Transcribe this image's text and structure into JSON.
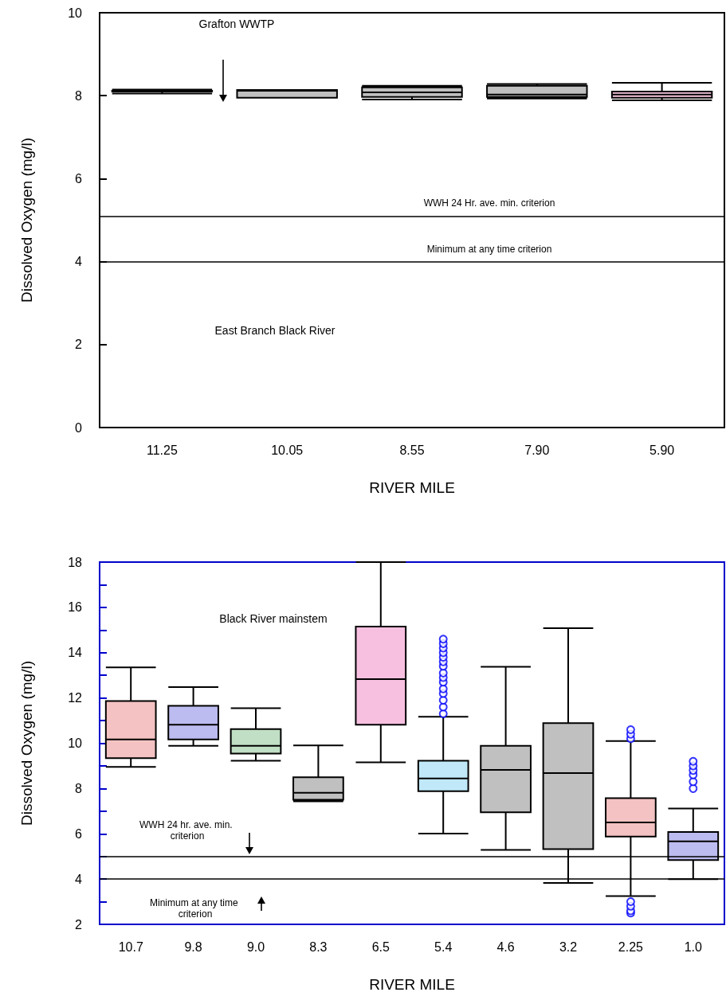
{
  "chart_data": [
    {
      "type": "box",
      "xlabel": "RIVER MILE",
      "ylabel": "Dissolved Oxygen (mg/l)",
      "categories": [
        "11.25",
        "10.05",
        "8.55",
        "7.90",
        "5.90"
      ],
      "boxes": [
        {
          "low": 8.05,
          "q1": 8.1,
          "median": 8.1,
          "q3": 8.12,
          "high": 8.15
        },
        {
          "low": 7.95,
          "q1": 7.95,
          "median": 8.12,
          "q3": 8.14,
          "high": 8.14
        },
        {
          "low": 7.91,
          "q1": 7.97,
          "median": 8.08,
          "q3": 8.2,
          "high": 8.24
        },
        {
          "low": 7.93,
          "q1": 7.97,
          "median": 8.03,
          "q3": 8.24,
          "high": 8.28
        },
        {
          "low": 7.89,
          "q1": 7.95,
          "median": 8.03,
          "q3": 8.1,
          "high": 8.31
        }
      ],
      "colors": [
        "#404040",
        "#c0c0c0",
        "#c0c0c0",
        "#c0c0c0",
        "#f8c8e0"
      ],
      "ylim": [
        0,
        10
      ],
      "yticks": [
        0,
        2,
        4,
        6,
        8,
        10
      ],
      "grid": false,
      "ref_lines": [
        {
          "axis": "y",
          "value": 5.1,
          "label": "WWH 24 Hr. ave. min. criterion"
        },
        {
          "axis": "y",
          "value": 4.0,
          "label": "Minimum at any time criterion"
        }
      ],
      "annotations": [
        "Grafton WWTP",
        "East Branch Black River"
      ]
    },
    {
      "type": "box",
      "xlabel": "RIVER MILE",
      "ylabel": "Dissolved Oxygen (mg/l)",
      "categories": [
        "10.7",
        "9.8",
        "9.0",
        "8.3",
        "6.5",
        "5.4",
        "4.6",
        "3.2",
        "2.25",
        "1.0"
      ],
      "boxes": [
        {
          "low": 8.95,
          "q1": 9.34,
          "median": 10.17,
          "q3": 11.86,
          "high": 13.35
        },
        {
          "low": 9.89,
          "q1": 10.17,
          "median": 10.82,
          "q3": 11.65,
          "high": 12.48
        },
        {
          "low": 9.23,
          "q1": 9.54,
          "median": 9.89,
          "q3": 10.62,
          "high": 11.55
        },
        {
          "low": 7.43,
          "q1": 7.5,
          "median": 7.81,
          "q3": 8.5,
          "high": 9.9
        },
        {
          "low": 9.16,
          "q1": 10.82,
          "median": 12.83,
          "q3": 15.15,
          "high": 18.0
        },
        {
          "low": 6.01,
          "q1": 7.88,
          "median": 8.44,
          "q3": 9.23,
          "high": 11.17,
          "outliers": [
            11.3,
            11.6,
            11.9,
            12.2,
            12.4,
            12.7,
            12.9,
            13.1,
            13.4,
            13.6,
            13.8,
            14.0,
            14.2,
            14.4,
            14.6
          ]
        },
        {
          "low": 5.29,
          "q1": 6.95,
          "median": 8.82,
          "q3": 9.89,
          "high": 13.38
        },
        {
          "low": 3.83,
          "q1": 5.32,
          "median": 8.68,
          "q3": 10.89,
          "high": 15.08
        },
        {
          "low": 3.25,
          "q1": 5.88,
          "median": 6.5,
          "q3": 7.57,
          "high": 10.1,
          "outliers": [
            10.2,
            10.4,
            10.6,
            2.5,
            2.6,
            2.8,
            3.0
          ]
        },
        {
          "low": 4.0,
          "q1": 4.84,
          "median": 5.67,
          "q3": 6.08,
          "high": 7.12,
          "outliers": [
            8.0,
            8.3,
            8.6,
            8.8,
            9.0,
            9.2
          ]
        }
      ],
      "colors": [
        "#f4c2c2",
        "#bcbcf0",
        "#c0dfc4",
        "#c0c0c0",
        "#f8c0e0",
        "#c0e8f8",
        "#c0c0c0",
        "#c0c0c0",
        "#f4c2c2",
        "#bcbcf0"
      ],
      "ylim": [
        2,
        18
      ],
      "yticks": [
        2,
        {
          "value": 3,
          "label": null
        },
        4,
        {
          "value": 5,
          "label": null
        },
        6,
        {
          "value": 7,
          "label": null
        },
        8,
        {
          "value": 9,
          "label": null
        },
        10,
        {
          "value": 11,
          "label": null
        },
        12,
        {
          "value": 13,
          "label": null
        },
        14,
        {
          "value": 15,
          "label": null
        },
        16,
        {
          "value": 17,
          "label": null
        },
        18
      ],
      "grid": false,
      "ref_lines": [
        {
          "axis": "y",
          "value": 5.0,
          "label": "WWH 24 hr. ave. min. criterion"
        },
        {
          "axis": "y",
          "value": 4.0,
          "label": "Minimum at any time criterion"
        }
      ],
      "annotations": [
        "Black River mainstem"
      ]
    }
  ]
}
